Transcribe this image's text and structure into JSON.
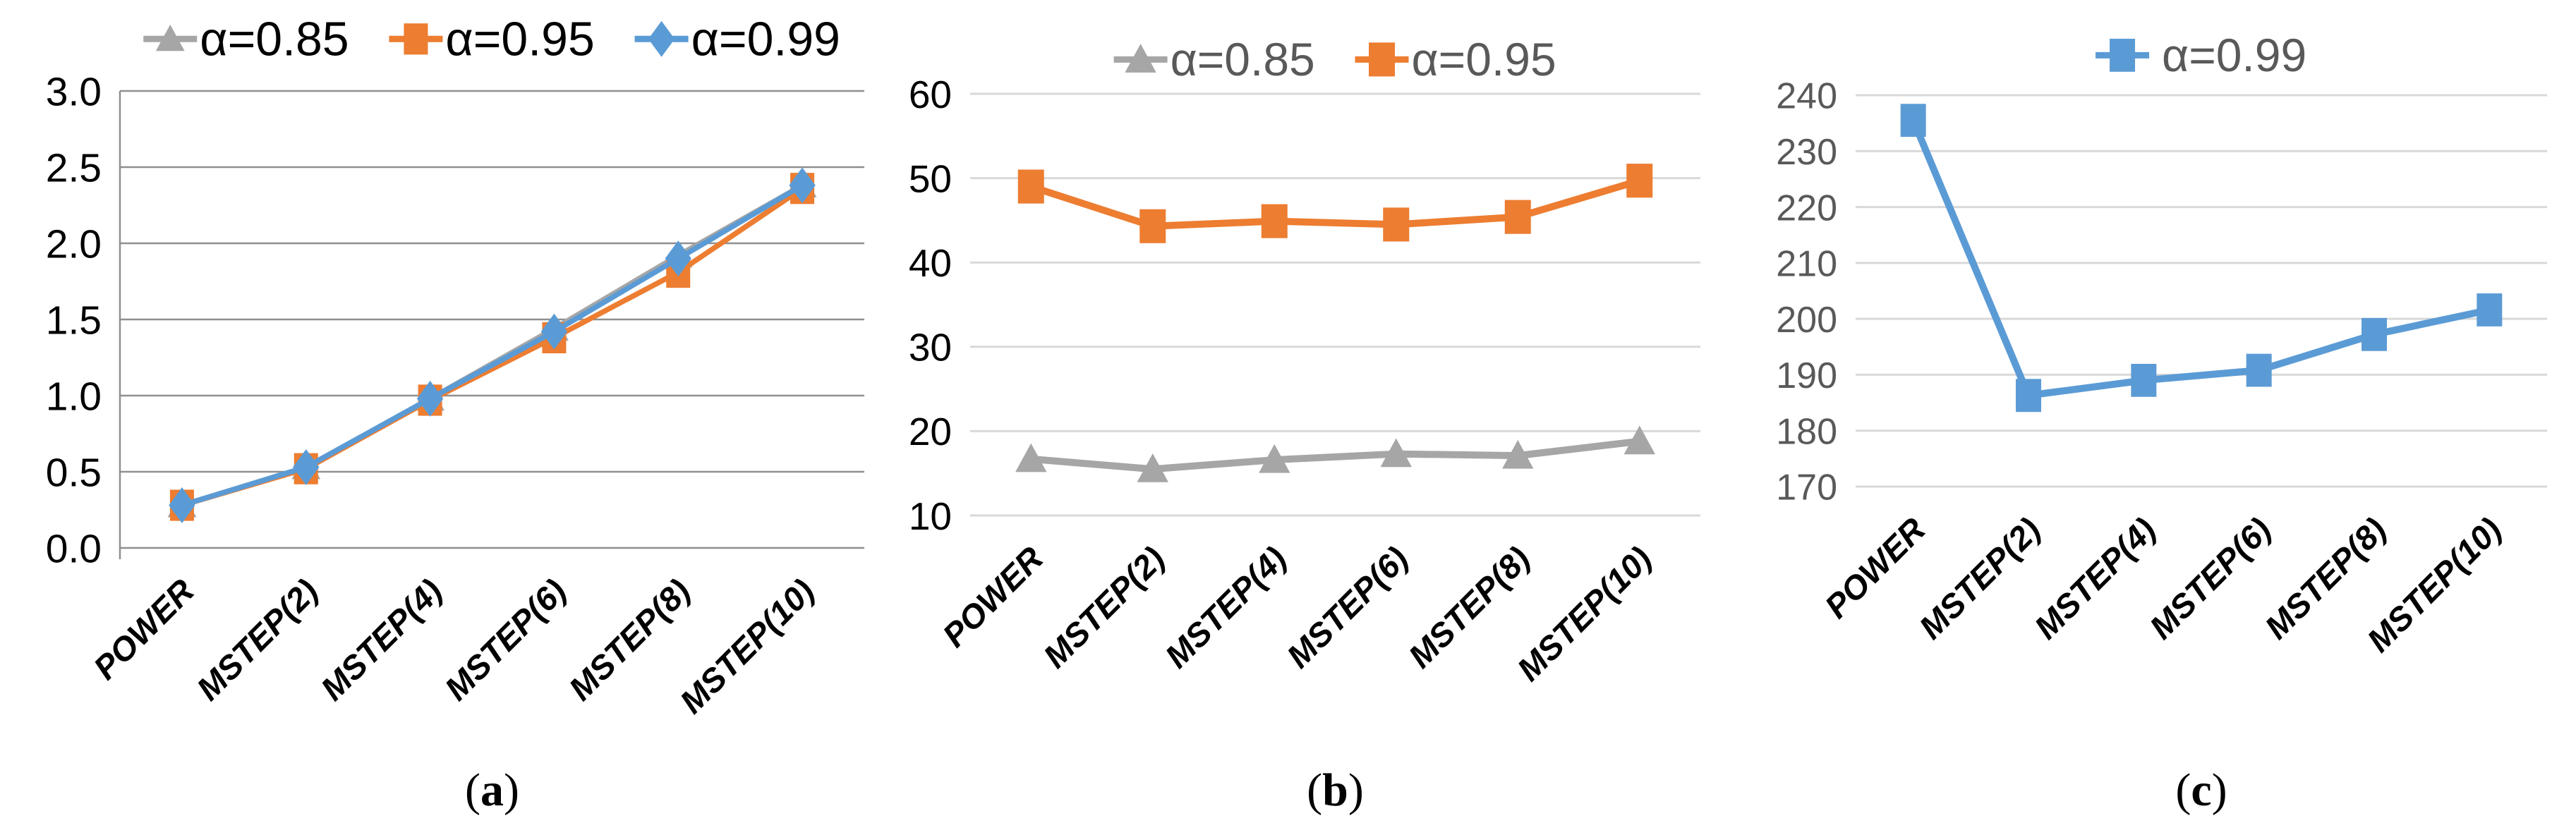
{
  "figure": {
    "background": "#ffffff",
    "description_visible_text_only": true
  },
  "chart_data": [
    {
      "id": "a",
      "type": "line",
      "caption": "(a)",
      "legend_position": "top",
      "legend_text_color": "#000000",
      "tick_text_color": "#000000",
      "xlabel_text_color": "#000000",
      "grid_color": "#8F8F8F",
      "grid_on": true,
      "has_y_axis_line": true,
      "ylim": [
        0.0,
        3.0
      ],
      "ytick_step": 0.5,
      "ytick_labels": [
        "3.0",
        "2.5",
        "2.0",
        "1.5",
        "1.0",
        "0.5",
        "0.0"
      ],
      "categories": [
        "POWER",
        "MSTEP(2)",
        "MSTEP(4)",
        "MSTEP(6)",
        "MSTEP(8)",
        "MSTEP(10)"
      ],
      "series": [
        {
          "name": "α=0.85",
          "color": "#A6A6A6",
          "marker": "triangle",
          "values": [
            0.28,
            0.53,
            0.98,
            1.44,
            1.92,
            2.38
          ]
        },
        {
          "name": "α=0.95",
          "color": "#ED7D31",
          "marker": "square",
          "values": [
            0.28,
            0.52,
            0.97,
            1.38,
            1.81,
            2.36
          ]
        },
        {
          "name": "α=0.99",
          "color": "#5B9BD5",
          "marker": "diamond",
          "values": [
            0.28,
            0.53,
            0.98,
            1.42,
            1.9,
            2.38
          ]
        }
      ]
    },
    {
      "id": "b",
      "type": "line",
      "caption": "(b)",
      "legend_position": "top",
      "legend_text_color": "#595959",
      "tick_text_color": "#000000",
      "xlabel_text_color": "#000000",
      "grid_color": "#D9D9D9",
      "grid_on": true,
      "has_y_axis_line": false,
      "ylim": [
        10,
        60
      ],
      "ytick_step": 10,
      "ytick_labels": [
        "60",
        "50",
        "40",
        "30",
        "20",
        "10"
      ],
      "categories": [
        "POWER",
        "MSTEP(2)",
        "MSTEP(4)",
        "MSTEP(6)",
        "MSTEP(8)",
        "MSTEP(10)"
      ],
      "series": [
        {
          "name": "α=0.85",
          "color": "#A6A6A6",
          "marker": "triangle",
          "values": [
            16.7,
            15.5,
            16.6,
            17.3,
            17.1,
            18.8
          ]
        },
        {
          "name": "α=0.95",
          "color": "#ED7D31",
          "marker": "square",
          "values": [
            49.0,
            44.3,
            44.9,
            44.5,
            45.4,
            49.7
          ]
        }
      ]
    },
    {
      "id": "c",
      "type": "line",
      "caption": "(c)",
      "legend_position": "top",
      "legend_text_color": "#595959",
      "tick_text_color": "#595959",
      "xlabel_text_color": "#000000",
      "grid_color": "#D9D9D9",
      "grid_on": true,
      "has_y_axis_line": false,
      "ylim": [
        170,
        240
      ],
      "ytick_step": 10,
      "ytick_labels": [
        "240",
        "230",
        "220",
        "210",
        "200",
        "190",
        "180",
        "170"
      ],
      "categories": [
        "POWER",
        "MSTEP(2)",
        "MSTEP(4)",
        "MSTEP(6)",
        "MSTEP(8)",
        "MSTEP(10)"
      ],
      "series": [
        {
          "name": "α=0.99",
          "color": "#5B9BD5",
          "marker": "square",
          "values": [
            235.5,
            186.3,
            189.0,
            190.8,
            197.2,
            201.6
          ]
        }
      ]
    }
  ]
}
